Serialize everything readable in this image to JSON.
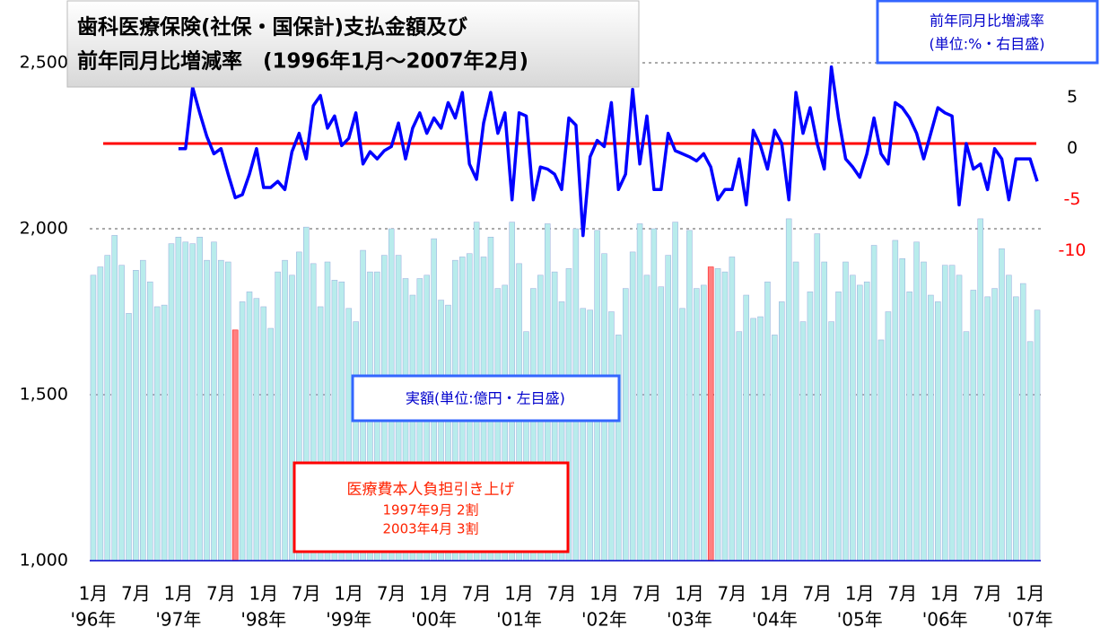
{
  "chart_data": {
    "type": "bar_line",
    "title": [
      "歯科医療保険(社保・国保計)支払金額及び",
      "前年同月比増減率　(1996年1月～2007年2月)"
    ],
    "y2_label": [
      "前年同月比増減率",
      "(単位:%・右目盛)"
    ],
    "bar_label": "実額(単位:億円・左目盛)",
    "annotation": [
      "医療費本人負担引き上げ",
      "1997年9月  2割",
      "2003年4月  3割"
    ],
    "categories": [
      "1月",
      null,
      null,
      null,
      null,
      null,
      "7月",
      null,
      null,
      null,
      null,
      null,
      "1月",
      null,
      null,
      null,
      null,
      null,
      "7月",
      null,
      null,
      null,
      null,
      null,
      "1月",
      null,
      null,
      null,
      null,
      null,
      "7月",
      null,
      null,
      null,
      null,
      null,
      "1月",
      null,
      null,
      null,
      null,
      null,
      "7月",
      null,
      null,
      null,
      null,
      null,
      "1月",
      null,
      null,
      null,
      null,
      null,
      "7月",
      null,
      null,
      null,
      null,
      null,
      "1月",
      null,
      null,
      null,
      null,
      null,
      "7月",
      null,
      null,
      null,
      null,
      null,
      "1月",
      null,
      null,
      null,
      null,
      null,
      "7月",
      null,
      null,
      null,
      null,
      null,
      "1月",
      null,
      null,
      null,
      null,
      null,
      "7月",
      null,
      null,
      null,
      null,
      null,
      "1月",
      null,
      null,
      null,
      null,
      null,
      "7月",
      null,
      null,
      null,
      null,
      null,
      "1月",
      null,
      null,
      null,
      null,
      null,
      "7月",
      null,
      null,
      null,
      null,
      null,
      "1月",
      null,
      null,
      null,
      null,
      null,
      "7月",
      null,
      null,
      null,
      null,
      null,
      "1月",
      null
    ],
    "year_labels": [
      "'96年",
      null,
      null,
      null,
      null,
      null,
      null,
      null,
      null,
      null,
      null,
      null,
      "'97年",
      null,
      null,
      null,
      null,
      null,
      null,
      null,
      null,
      null,
      null,
      null,
      "'98年",
      null,
      null,
      null,
      null,
      null,
      null,
      null,
      null,
      null,
      null,
      null,
      "'99年",
      null,
      null,
      null,
      null,
      null,
      null,
      null,
      null,
      null,
      null,
      null,
      "'00年",
      null,
      null,
      null,
      null,
      null,
      null,
      null,
      null,
      null,
      null,
      null,
      "'01年",
      null,
      null,
      null,
      null,
      null,
      null,
      null,
      null,
      null,
      null,
      null,
      "'02年",
      null,
      null,
      null,
      null,
      null,
      null,
      null,
      null,
      null,
      null,
      null,
      "'03年",
      null,
      null,
      null,
      null,
      null,
      null,
      null,
      null,
      null,
      null,
      null,
      "'04年",
      null,
      null,
      null,
      null,
      null,
      null,
      null,
      null,
      null,
      null,
      null,
      "'05年",
      null,
      null,
      null,
      null,
      null,
      null,
      null,
      null,
      null,
      null,
      null,
      "'06年",
      null,
      null,
      null,
      null,
      null,
      null,
      null,
      null,
      null,
      null,
      null,
      "'07年",
      null
    ],
    "series": [
      {
        "type": "bar",
        "color": "#b8ecec",
        "colors_special": null,
        "values": [
          1860,
          1885,
          1920,
          1980,
          1890,
          1745,
          1875,
          1905,
          1840,
          1765,
          1770,
          1955,
          1975,
          1960,
          1955,
          1975,
          1905,
          1960,
          1905,
          1900,
          1695,
          1780,
          1810,
          1790,
          1765,
          1700,
          1870,
          1905,
          1860,
          1930,
          2005,
          1895,
          1765,
          1900,
          1845,
          1840,
          1760,
          1720,
          1935,
          1870,
          1870,
          1920,
          2000,
          1920,
          1850,
          1800,
          1850,
          1860,
          1970,
          1785,
          1770,
          1905,
          1915,
          1925,
          2020,
          1915,
          1975,
          1820,
          1830,
          2020,
          1895,
          1690,
          1820,
          1860,
          2015,
          1870,
          1780,
          1880,
          2000,
          1760,
          1755,
          1995,
          1925,
          1750,
          1680,
          1820,
          1930,
          2015,
          1860,
          2000,
          1825,
          1920,
          2020,
          1760,
          1995,
          1820,
          1830,
          1885,
          1880,
          1870,
          1915,
          1690,
          1800,
          1730,
          1735,
          1840,
          1680,
          1780,
          2030,
          1900,
          1720,
          1810,
          1985,
          1900,
          1720,
          1810,
          1900,
          1860,
          1830,
          1840,
          1950,
          1665,
          1750,
          1965,
          1910,
          1810,
          1960,
          1900,
          1800,
          1780,
          1890,
          1890,
          1860,
          1690,
          1815,
          2030,
          1795,
          1820,
          1940,
          1860,
          1795,
          1835,
          1660,
          1755
        ]
      },
      {
        "type": "line",
        "axis": "y2",
        "color": "#0000ff",
        "values": [
          null,
          null,
          null,
          null,
          null,
          null,
          null,
          null,
          null,
          null,
          null,
          null,
          0,
          0,
          6,
          3.5,
          1.2,
          -0.5,
          0,
          -2.5,
          -4.8,
          -4.5,
          -2.5,
          0,
          -3.8,
          -3.8,
          -3.2,
          -4,
          -0.3,
          1.5,
          -1,
          4.2,
          5.2,
          2,
          3.2,
          0.3,
          1,
          3.5,
          -1.5,
          -0.3,
          -1,
          -0.2,
          0.2,
          2.5,
          -1,
          2,
          3.5,
          1.5,
          3,
          2,
          4.5,
          3,
          5.5,
          -1.5,
          -3,
          2.5,
          5.5,
          1.5,
          3.5,
          -5,
          3.5,
          3.2,
          -5,
          -1.8,
          -2,
          -2.5,
          -4,
          3,
          2.3,
          -8.5,
          -0.8,
          0.8,
          0.2,
          4.5,
          -4,
          -2.5,
          5.8,
          -1.5,
          3.2,
          -4,
          -4,
          1.5,
          -0.2,
          -0.5,
          -0.8,
          -1.2,
          -0.5,
          -1.8,
          -5,
          -4,
          -4,
          -1,
          -5.5,
          1.8,
          0.3,
          -2,
          1.8,
          0.5,
          -5,
          5.5,
          1.5,
          4,
          0.5,
          -2,
          8,
          3,
          -1,
          -1.8,
          -2.8,
          -0.5,
          3,
          -0.5,
          -1.5,
          4.5,
          4,
          3,
          1.5,
          -1,
          1.5,
          4,
          3.5,
          3.2,
          -5.5,
          0.5,
          -2,
          -1.5,
          -4,
          0,
          -1,
          -5,
          -1,
          -1,
          -1,
          -3.2
        ]
      }
    ],
    "highlight": {
      "color": "#ff8080",
      "categories": [
        "1997年9月",
        "2003年4月"
      ]
    },
    "reference_line": {
      "value": 0.5,
      "color": "#ff0000"
    },
    "ylim": [
      1000,
      2500
    ],
    "yticks": [
      {
        "value": 1000,
        "label": "1,000"
      },
      {
        "value": 1500,
        "label": "1,500"
      },
      {
        "value": 2000,
        "label": "2,000"
      },
      {
        "value": 2500,
        "label": "2,500"
      }
    ],
    "y2lim": [
      -40.3,
      8.4
    ],
    "y2ticks": [
      5,
      0,
      -5,
      -10
    ],
    "negative_tick_color": "#ff0000",
    "grid": true
  }
}
